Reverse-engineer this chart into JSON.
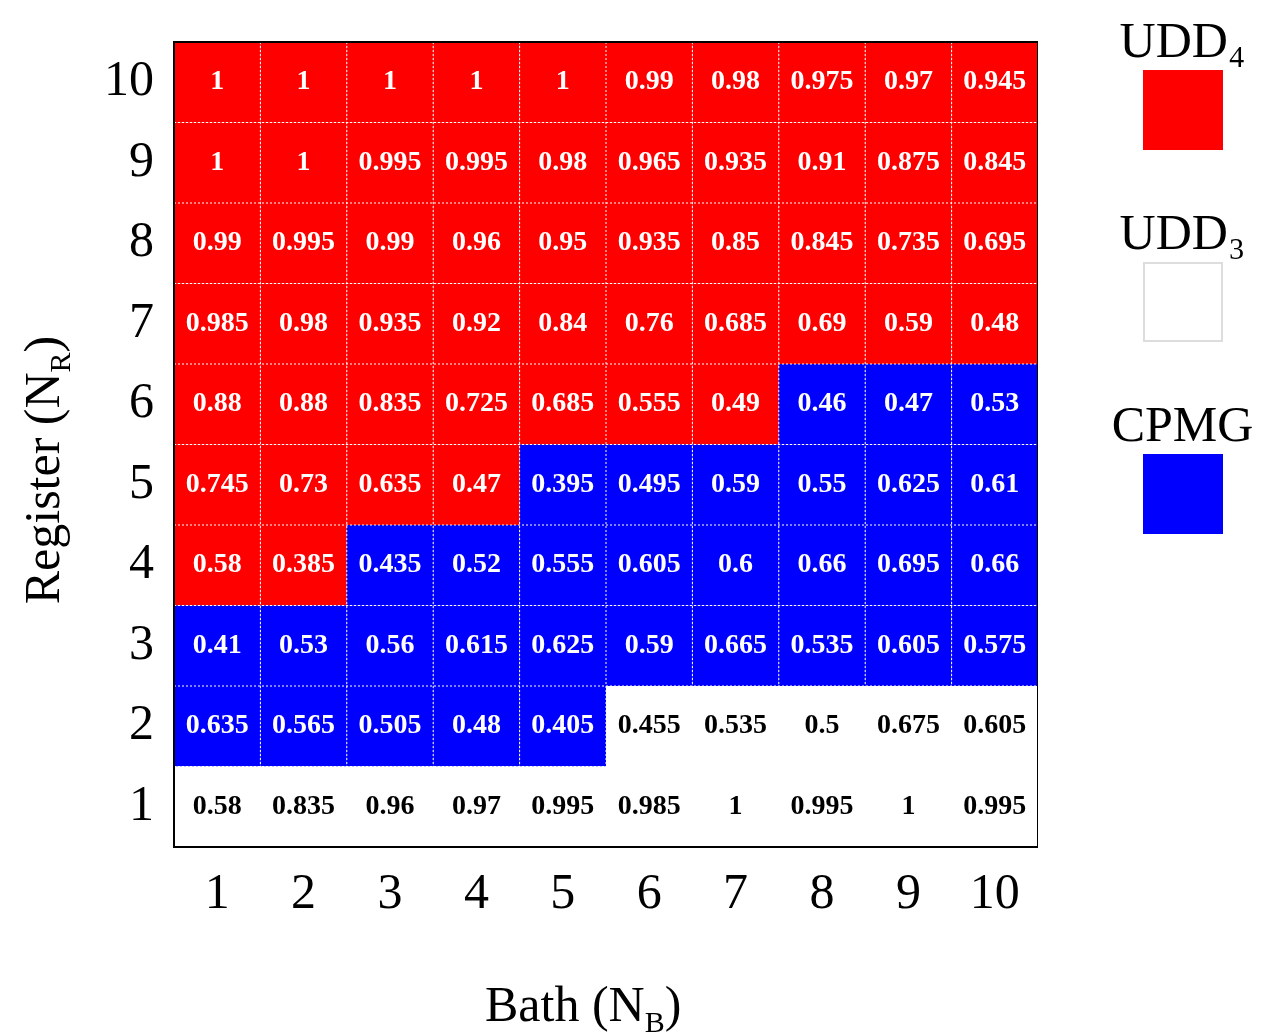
{
  "chart_data": {
    "type": "heatmap",
    "xlabel": "Bath (N$_{B}$)",
    "ylabel": "Register (N$_{R}$)",
    "annotations": [
      "UDD₄",
      "UDD₃",
      "CPMG"
    ],
    "categories": [
      "1",
      "2",
      "3",
      "4",
      "5",
      "6",
      "7",
      "8",
      "9",
      "10"
    ],
    "y_categories": [
      "10",
      "9",
      "8",
      "7",
      "6",
      "5",
      "4",
      "3",
      "2",
      "1"
    ],
    "grid": true,
    "data_labels": true,
    "cells": [
      [
        1,
        1,
        1,
        1,
        1,
        0.99,
        0.98,
        0.975,
        0.97,
        0.945
      ],
      [
        1,
        1,
        0.995,
        0.995,
        0.98,
        0.965,
        0.935,
        0.91,
        0.875,
        0.845
      ],
      [
        0.99,
        0.995,
        0.99,
        0.96,
        0.95,
        0.935,
        0.85,
        0.845,
        0.735,
        0.695
      ],
      [
        0.985,
        0.98,
        0.935,
        0.92,
        0.84,
        0.76,
        0.685,
        0.69,
        0.59,
        0.48
      ],
      [
        0.88,
        0.88,
        0.835,
        0.725,
        0.685,
        0.555,
        0.49,
        0.46,
        0.47,
        0.53
      ],
      [
        0.745,
        0.73,
        0.635,
        0.47,
        0.395,
        0.495,
        0.59,
        0.55,
        0.625,
        0.61
      ],
      [
        0.58,
        0.385,
        0.435,
        0.52,
        0.555,
        0.605,
        0.6,
        0.66,
        0.695,
        0.66
      ],
      [
        0.41,
        0.53,
        0.56,
        0.615,
        0.625,
        0.59,
        0.665,
        0.535,
        0.605,
        0.575
      ],
      [
        0.635,
        0.565,
        0.505,
        0.48,
        0.405,
        0.455,
        0.535,
        0.5,
        0.675,
        0.605
      ],
      [
        0.58,
        0.835,
        0.96,
        0.97,
        0.995,
        0.985,
        1,
        0.995,
        1,
        0.995
      ]
    ],
    "colors": [
      [
        "#ff0000",
        "#ff0000",
        "#ff0000",
        "#ff0000",
        "#ff0000",
        "#ff0000",
        "#ff0000",
        "#ff0000",
        "#ff0000",
        "#ff0000"
      ],
      [
        "#ff0000",
        "#ff0000",
        "#ff0000",
        "#ff0000",
        "#ff0000",
        "#ff0000",
        "#ff0000",
        "#ff0000",
        "#ff0000",
        "#ff0000"
      ],
      [
        "#ff0000",
        "#ff0000",
        "#ff0000",
        "#ff0000",
        "#ff0000",
        "#ff0000",
        "#ff0000",
        "#ff0000",
        "#ff0000",
        "#ff0000"
      ],
      [
        "#ff0000",
        "#ff0000",
        "#ff0000",
        "#ff0000",
        "#ff0000",
        "#ff0000",
        "#ff0000",
        "#ff0000",
        "#ff0000",
        "#ff0000"
      ],
      [
        "#ff0000",
        "#ff0000",
        "#ff0000",
        "#ff0000",
        "#ff0000",
        "#ff0000",
        "#ff0000",
        "#0000ff",
        "#0000ff",
        "#0000ff"
      ],
      [
        "#ff0000",
        "#ff0000",
        "#ff0000",
        "#ff0000",
        "#0000ff",
        "#0000ff",
        "#0000ff",
        "#0000ff",
        "#0000ff",
        "#0000ff"
      ],
      [
        "#ff0000",
        "#ff0000",
        "#0000ff",
        "#0000ff",
        "#0000ff",
        "#0000ff",
        "#0000ff",
        "#0000ff",
        "#0000ff",
        "#0000ff"
      ],
      [
        "#0000ff",
        "#0000ff",
        "#0000ff",
        "#0000ff",
        "#0000ff",
        "#0000ff",
        "#0000ff",
        "#0000ff",
        "#0000ff",
        "#0000ff"
      ],
      [
        "#0000ff",
        "#0000ff",
        "#0000ff",
        "#0000ff",
        "#0000ff",
        "#ffffff",
        "#ffffff",
        "#ffffff",
        "#ffffff",
        "#ffffff"
      ],
      [
        "#ffffff",
        "#ffffff",
        "#ffffff",
        "#ffffff",
        "#ffffff",
        "#ffffff",
        "#ffffff",
        "#ffffff",
        "#ffffff",
        "#ffffff"
      ]
    ]
  }
}
